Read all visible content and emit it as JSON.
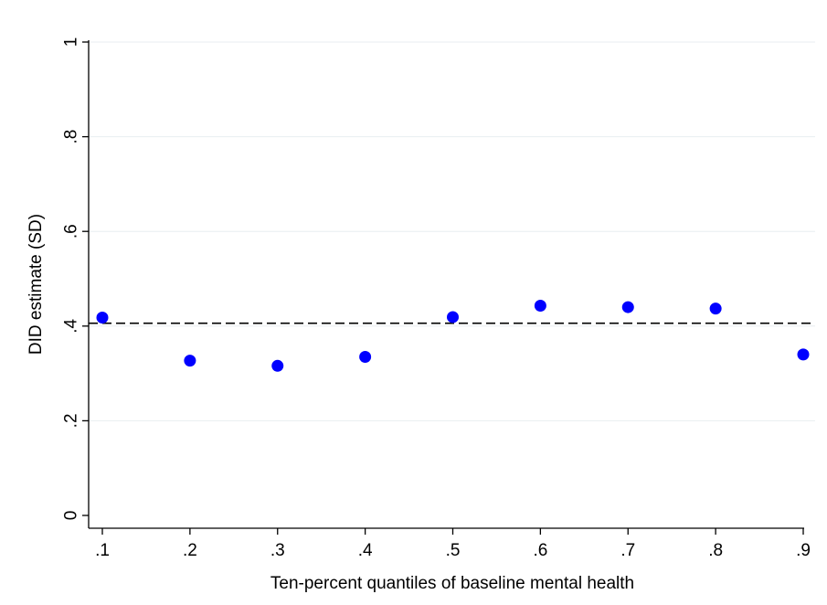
{
  "chart_data": {
    "type": "scatter",
    "title": "",
    "xlabel": "Ten-percent quantiles of baseline mental health",
    "ylabel": "DID estimate (SD)",
    "xlim": [
      0.1,
      0.9
    ],
    "ylim": [
      0,
      1
    ],
    "x_ticks": [
      ".1",
      ".2",
      ".3",
      ".4",
      ".5",
      ".6",
      ".7",
      ".8",
      ".9"
    ],
    "y_ticks": [
      "0",
      ".2",
      ".4",
      ".6",
      ".8",
      "1"
    ],
    "grid": "horizontal",
    "series": [
      {
        "x": [
          0.1,
          0.2,
          0.3,
          0.4,
          0.5,
          0.6,
          0.7,
          0.8,
          0.9
        ],
        "y": [
          0.418,
          0.327,
          0.316,
          0.335,
          0.419,
          0.443,
          0.44,
          0.437,
          0.34
        ],
        "color": "#0000ff"
      }
    ],
    "reference_line": {
      "y": 0.406,
      "style": "dashed",
      "color": "#000000"
    }
  }
}
